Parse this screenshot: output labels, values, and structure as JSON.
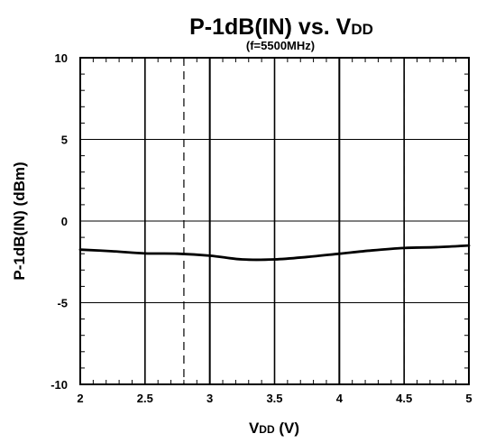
{
  "chart_data": {
    "type": "line",
    "title": {
      "main": "P-1dB(IN) vs. V",
      "subscript": "DD"
    },
    "subtitle": "(f=5500MHz)",
    "xlabel": {
      "main": "V",
      "subscript": "DD",
      "suffix": " (V)"
    },
    "ylabel": "P-1dB(IN) (dBm)",
    "xlim": [
      2,
      5
    ],
    "ylim": [
      -10,
      10
    ],
    "x_ticks": [
      "2",
      "2.5",
      "3",
      "3.5",
      "4",
      "4.5",
      "5"
    ],
    "y_ticks": [
      "10",
      "5",
      "0",
      "-5",
      "-10"
    ],
    "grid": true,
    "dashed_reference_lines_x": [
      2.8,
      4.5
    ],
    "series": [
      {
        "name": "",
        "x": [
          2.0,
          2.25,
          2.5,
          2.75,
          3.0,
          3.25,
          3.5,
          3.75,
          4.0,
          4.25,
          4.5,
          4.75,
          5.0
        ],
        "y": [
          -1.75,
          -1.85,
          -1.98,
          -2.0,
          -2.12,
          -2.35,
          -2.35,
          -2.2,
          -2.0,
          -1.8,
          -1.65,
          -1.6,
          -1.5
        ]
      }
    ],
    "line_color": "#000000"
  }
}
